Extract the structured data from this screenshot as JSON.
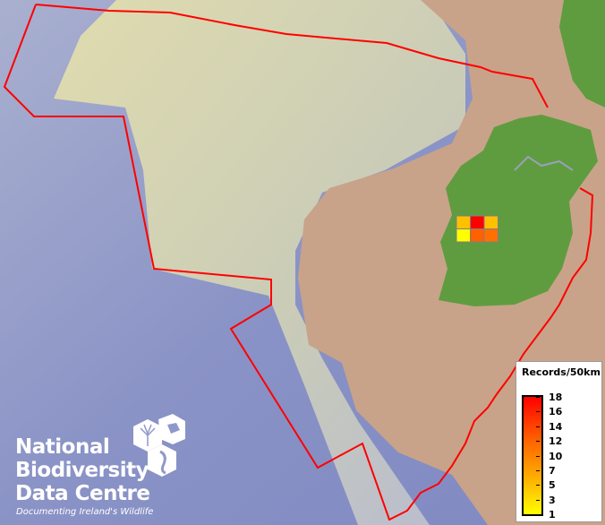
{
  "legend": {
    "title": "Records/50km",
    "ticks": [
      "18",
      "16",
      "14",
      "12",
      "10",
      "7",
      "5",
      "3",
      "1"
    ],
    "colors": {
      "high": "#ff0000",
      "mid": "#ff7000",
      "low": "#ffff00"
    }
  },
  "grid_cells": [
    {
      "row": 0,
      "col": 0,
      "color": "#ffc000"
    },
    {
      "row": 0,
      "col": 1,
      "color": "#ff0000"
    },
    {
      "row": 0,
      "col": 2,
      "color": "#ffc000"
    },
    {
      "row": 1,
      "col": 0,
      "color": "#ffff00"
    },
    {
      "row": 1,
      "col": 1,
      "color": "#ff6000"
    },
    {
      "row": 1,
      "col": 2,
      "color": "#ff7000"
    }
  ],
  "colors": {
    "boundary": "#ff0000",
    "sea": "#8f99c9",
    "shelf": "#d8d4a6",
    "land": "#c8a389",
    "ireland": "#5f9c3f"
  },
  "logo": {
    "line1": "National",
    "line2": "Biodiversity",
    "line3": "Data Centre",
    "tagline": "Documenting Ireland's Wildlife"
  }
}
